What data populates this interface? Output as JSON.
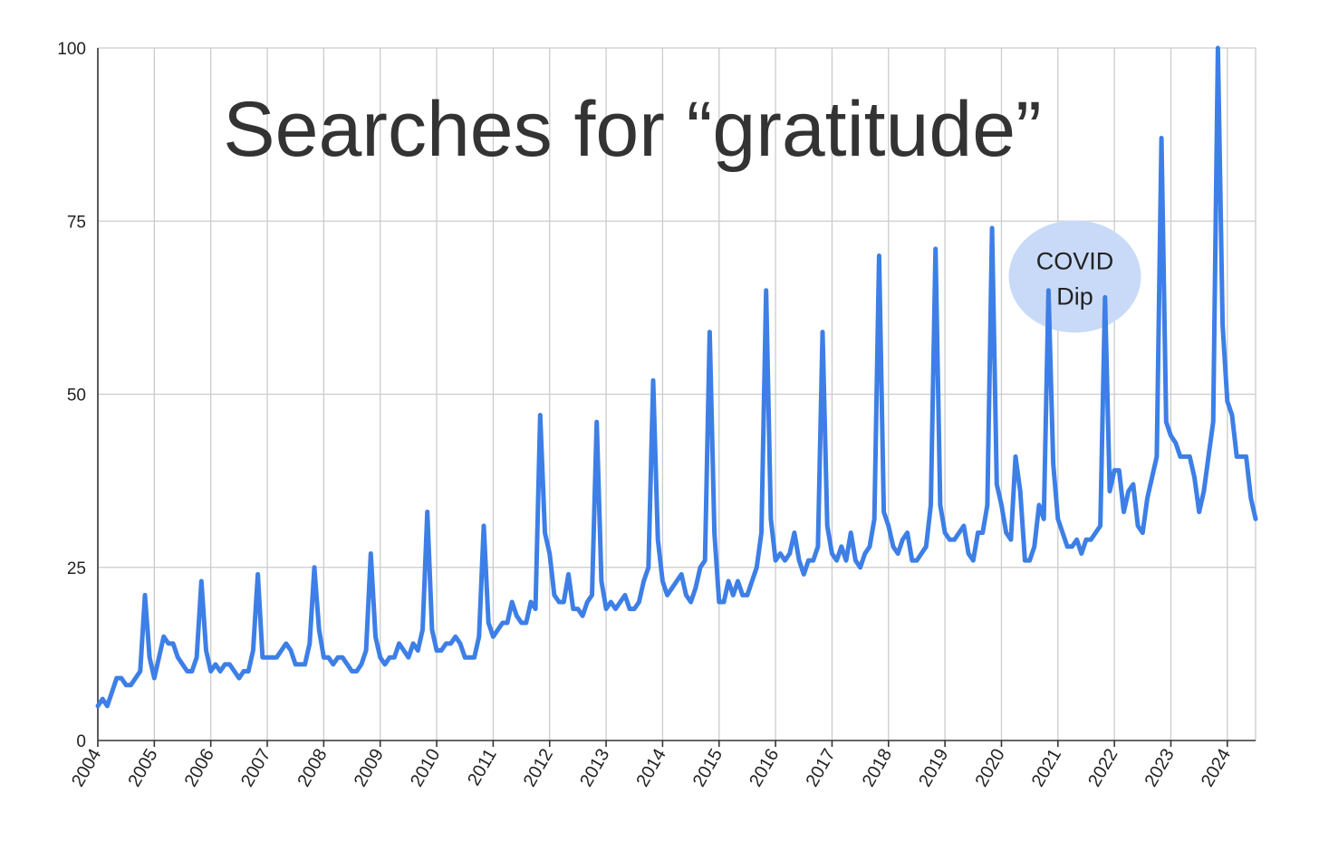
{
  "chart_data": {
    "type": "line",
    "title": "Searches for “gratitude”",
    "xlabel": "",
    "ylabel": "",
    "x_range": [
      2004.0,
      2024.5
    ],
    "ylim": [
      0,
      100
    ],
    "y_ticks": [
      "0",
      "25",
      "50",
      "75",
      "100"
    ],
    "x_ticks": [
      "2004",
      "2005",
      "2006",
      "2007",
      "2008",
      "2009",
      "2010",
      "2011",
      "2012",
      "2013",
      "2014",
      "2015",
      "2016",
      "2017",
      "2018",
      "2019",
      "2020",
      "2021",
      "2022",
      "2023",
      "2024"
    ],
    "grid": true,
    "line_color": "#3d7fe6",
    "annotation": {
      "text_line1": "COVID",
      "text_line2": "Dip",
      "x": 2021.3,
      "y": 67,
      "fill": "#c9daf8"
    },
    "series": [
      {
        "values": [
          5,
          6,
          5,
          7,
          9,
          9,
          8,
          8,
          9,
          10,
          21,
          12,
          9,
          12,
          15,
          14,
          14,
          12,
          11,
          10,
          10,
          12,
          23,
          13,
          10,
          11,
          10,
          11,
          11,
          10,
          9,
          10,
          10,
          13,
          24,
          12,
          12,
          12,
          12,
          13,
          14,
          13,
          11,
          11,
          11,
          14,
          25,
          16,
          12,
          12,
          11,
          12,
          12,
          11,
          10,
          10,
          11,
          13,
          27,
          15,
          12,
          11,
          12,
          12,
          14,
          13,
          12,
          14,
          13,
          16,
          33,
          16,
          13,
          13,
          14,
          14,
          15,
          14,
          12,
          12,
          12,
          15,
          31,
          17,
          15,
          16,
          17,
          17,
          20,
          18,
          17,
          17,
          20,
          19,
          47,
          30,
          27,
          21,
          20,
          20,
          24,
          19,
          19,
          18,
          20,
          21,
          46,
          23,
          19,
          20,
          19,
          20,
          21,
          19,
          19,
          20,
          23,
          25,
          52,
          29,
          23,
          21,
          22,
          23,
          24,
          21,
          20,
          22,
          25,
          26,
          59,
          30,
          20,
          20,
          23,
          21,
          23,
          21,
          21,
          23,
          25,
          30,
          65,
          32,
          26,
          27,
          26,
          27,
          30,
          26,
          24,
          26,
          26,
          28,
          59,
          31,
          27,
          26,
          28,
          26,
          30,
          26,
          25,
          27,
          28,
          32,
          70,
          33,
          31,
          28,
          27,
          29,
          30,
          26,
          26,
          27,
          28,
          34,
          71,
          34,
          30,
          29,
          29,
          30,
          31,
          27,
          26,
          30,
          30,
          34,
          74,
          37,
          34,
          30,
          29,
          41,
          36,
          26,
          26,
          28,
          34,
          32,
          65,
          40,
          32,
          30,
          28,
          28,
          29,
          27,
          29,
          29,
          30,
          31,
          64,
          36,
          39,
          39,
          33,
          36,
          37,
          31,
          30,
          35,
          38,
          41,
          87,
          46,
          44,
          43,
          41,
          41,
          41,
          38,
          33,
          36,
          41,
          46,
          100,
          60,
          49,
          47,
          41,
          41,
          41,
          35,
          32
        ]
      }
    ]
  }
}
